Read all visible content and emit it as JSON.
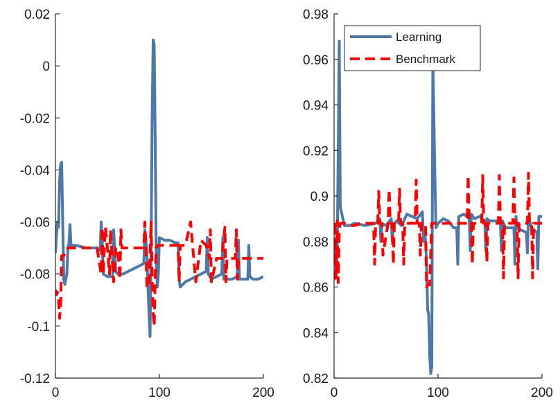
{
  "chart_data": [
    {
      "type": "line",
      "xlim": [
        0,
        200
      ],
      "ylim": [
        -0.12,
        0.02
      ],
      "xticks": [
        0,
        100,
        200
      ],
      "xtick_labels": [
        "0",
        "100",
        "200"
      ],
      "yticks": [
        -0.12,
        -0.1,
        -0.08,
        -0.06,
        -0.04,
        -0.02,
        0,
        0.02
      ],
      "ytick_labels": [
        "-0.12",
        "-0.1",
        "-0.08",
        "-0.06",
        "-0.04",
        "-0.02",
        "0",
        "0.02"
      ],
      "grid": false,
      "series": [
        {
          "color": "#4e79a7",
          "style": "solid",
          "x": [
            0,
            1,
            2,
            3,
            4,
            5,
            6,
            7,
            8,
            9,
            10,
            11,
            12,
            13,
            14,
            15,
            20,
            30,
            40,
            43,
            44,
            45,
            46,
            50,
            55,
            56,
            57,
            58,
            60,
            65,
            70,
            75,
            80,
            85,
            86,
            87,
            88,
            89,
            90,
            91,
            92,
            93,
            94,
            95,
            96,
            97,
            98,
            99,
            100,
            105,
            110,
            115,
            118,
            119,
            120,
            125,
            130,
            135,
            140,
            145,
            146,
            147,
            150,
            155,
            160,
            161,
            162,
            165,
            170,
            175,
            176,
            177,
            180,
            185,
            186,
            187,
            190,
            195,
            200
          ],
          "y": [
            -0.072,
            -0.065,
            -0.06,
            -0.062,
            -0.044,
            -0.038,
            -0.037,
            -0.06,
            -0.082,
            -0.084,
            -0.082,
            -0.08,
            -0.07,
            -0.068,
            -0.061,
            -0.069,
            -0.069,
            -0.07,
            -0.07,
            -0.071,
            -0.06,
            -0.068,
            -0.08,
            -0.081,
            -0.081,
            -0.063,
            -0.07,
            -0.079,
            -0.08,
            -0.08,
            -0.079,
            -0.078,
            -0.077,
            -0.076,
            -0.063,
            -0.067,
            -0.073,
            -0.085,
            -0.095,
            -0.104,
            -0.07,
            -0.02,
            0.01,
            0.008,
            -0.03,
            -0.075,
            -0.085,
            -0.08,
            -0.066,
            -0.067,
            -0.067,
            -0.068,
            -0.068,
            -0.082,
            -0.085,
            -0.083,
            -0.082,
            -0.081,
            -0.08,
            -0.079,
            -0.066,
            -0.08,
            -0.082,
            -0.081,
            -0.08,
            -0.066,
            -0.082,
            -0.082,
            -0.082,
            -0.081,
            -0.067,
            -0.082,
            -0.082,
            -0.082,
            -0.069,
            -0.081,
            -0.082,
            -0.082,
            -0.081
          ]
        },
        {
          "color": "#ff0000",
          "style": "dashed",
          "x": [
            0,
            1,
            2,
            3,
            4,
            5,
            6,
            7,
            8,
            9,
            10,
            11,
            12,
            13,
            15,
            20,
            25,
            30,
            35,
            40,
            44,
            45,
            46,
            47,
            48,
            50,
            52,
            53,
            54,
            56,
            58,
            60,
            62,
            63,
            64,
            65,
            70,
            75,
            80,
            85,
            86,
            87,
            88,
            90,
            92,
            93,
            94,
            95,
            96,
            97,
            98,
            99,
            100,
            105,
            110,
            115,
            118,
            119,
            120,
            125,
            130,
            135,
            140,
            145,
            148,
            149,
            150,
            155,
            160,
            163,
            164,
            165,
            170,
            173,
            174,
            175,
            176,
            178,
            180,
            185,
            190,
            195,
            200
          ],
          "y": [
            -0.086,
            -0.088,
            -0.087,
            -0.09,
            -0.097,
            -0.092,
            -0.073,
            -0.073,
            -0.073,
            -0.072,
            -0.072,
            -0.071,
            -0.07,
            -0.07,
            -0.07,
            -0.07,
            -0.07,
            -0.07,
            -0.07,
            -0.07,
            -0.08,
            -0.062,
            -0.08,
            -0.07,
            -0.062,
            -0.07,
            -0.08,
            -0.063,
            -0.07,
            -0.083,
            -0.07,
            -0.07,
            -0.082,
            -0.063,
            -0.07,
            -0.07,
            -0.07,
            -0.07,
            -0.07,
            -0.07,
            -0.06,
            -0.07,
            -0.085,
            -0.085,
            -0.06,
            -0.08,
            -0.095,
            -0.1,
            -0.08,
            -0.07,
            -0.069,
            -0.069,
            -0.069,
            -0.069,
            -0.069,
            -0.069,
            -0.069,
            -0.083,
            -0.069,
            -0.069,
            -0.06,
            -0.083,
            -0.067,
            -0.069,
            -0.074,
            -0.063,
            -0.083,
            -0.074,
            -0.074,
            -0.062,
            -0.083,
            -0.074,
            -0.074,
            -0.074,
            -0.063,
            -0.082,
            -0.074,
            -0.074,
            -0.074,
            -0.074,
            -0.074,
            -0.074,
            -0.074
          ]
        }
      ]
    },
    {
      "type": "line",
      "xlim": [
        0,
        200
      ],
      "ylim": [
        0.82,
        0.98
      ],
      "xticks": [
        0,
        100,
        200
      ],
      "xtick_labels": [
        "0",
        "100",
        "200"
      ],
      "yticks": [
        0.82,
        0.84,
        0.86,
        0.88,
        0.9,
        0.92,
        0.94,
        0.96,
        0.98
      ],
      "ytick_labels": [
        "0.82",
        "0.84",
        "0.86",
        "0.88",
        "0.9",
        "0.92",
        "0.94",
        "0.96",
        "0.98"
      ],
      "grid": false,
      "legend": {
        "location": "top-left",
        "entries": [
          "Learning",
          "Benchmark"
        ]
      },
      "series": [
        {
          "name": "Learning",
          "color": "#4e79a7",
          "style": "solid",
          "x": [
            0,
            1,
            2,
            3,
            4,
            5,
            6,
            7,
            8,
            9,
            10,
            15,
            20,
            30,
            40,
            44,
            45,
            46,
            50,
            55,
            56,
            57,
            60,
            65,
            70,
            80,
            85,
            86,
            87,
            88,
            89,
            90,
            91,
            92,
            93,
            94,
            95,
            96,
            97,
            98,
            100,
            105,
            110,
            115,
            118,
            119,
            120,
            125,
            130,
            131,
            132,
            135,
            140,
            145,
            146,
            147,
            150,
            160,
            161,
            162,
            165,
            170,
            173,
            174,
            175,
            176,
            180,
            185,
            186,
            187,
            190,
            195,
            196,
            197,
            200
          ],
          "y": [
            0.88,
            0.875,
            0.868,
            0.874,
            0.92,
            0.968,
            0.895,
            0.893,
            0.891,
            0.889,
            0.887,
            0.887,
            0.888,
            0.887,
            0.888,
            0.89,
            0.88,
            0.888,
            0.887,
            0.89,
            0.88,
            0.887,
            0.889,
            0.887,
            0.892,
            0.89,
            0.893,
            0.88,
            0.886,
            0.88,
            0.87,
            0.85,
            0.848,
            0.83,
            0.822,
            0.825,
            0.96,
            0.935,
            0.908,
            0.886,
            0.888,
            0.89,
            0.889,
            0.886,
            0.886,
            0.87,
            0.891,
            0.892,
            0.89,
            0.876,
            0.892,
            0.89,
            0.891,
            0.889,
            0.876,
            0.89,
            0.889,
            0.889,
            0.876,
            0.889,
            0.886,
            0.886,
            0.886,
            0.87,
            0.891,
            0.886,
            0.885,
            0.884,
            0.875,
            0.891,
            0.886,
            0.884,
            0.868,
            0.891,
            0.891
          ]
        },
        {
          "name": "Benchmark",
          "color": "#ff0000",
          "style": "dashed",
          "x": [
            0,
            1,
            2,
            3,
            4,
            5,
            6,
            10,
            15,
            20,
            25,
            30,
            38,
            39,
            40,
            42,
            43,
            44,
            46,
            47,
            52,
            53,
            54,
            56,
            57,
            58,
            62,
            63,
            64,
            66,
            67,
            68,
            78,
            79,
            80,
            82,
            83,
            84,
            88,
            89,
            90,
            92,
            93,
            94,
            95,
            96,
            97,
            98,
            100,
            105,
            110,
            115,
            118,
            119,
            120,
            128,
            129,
            130,
            132,
            133,
            134,
            142,
            143,
            144,
            146,
            147,
            148,
            158,
            159,
            160,
            162,
            163,
            164,
            172,
            173,
            174,
            176,
            177,
            178,
            186,
            187,
            188,
            190,
            191,
            192,
            200
          ],
          "y": [
            0.863,
            0.889,
            0.864,
            0.889,
            0.862,
            0.885,
            0.888,
            0.888,
            0.887,
            0.887,
            0.888,
            0.888,
            0.888,
            0.87,
            0.888,
            0.888,
            0.902,
            0.888,
            0.888,
            0.874,
            0.888,
            0.903,
            0.888,
            0.888,
            0.87,
            0.888,
            0.888,
            0.903,
            0.888,
            0.888,
            0.87,
            0.888,
            0.888,
            0.907,
            0.888,
            0.888,
            0.874,
            0.888,
            0.888,
            0.86,
            0.861,
            0.861,
            0.875,
            0.888,
            0.888,
            0.888,
            0.888,
            0.888,
            0.888,
            0.888,
            0.888,
            0.888,
            0.888,
            0.888,
            0.888,
            0.888,
            0.909,
            0.888,
            0.888,
            0.87,
            0.888,
            0.888,
            0.909,
            0.888,
            0.888,
            0.871,
            0.888,
            0.888,
            0.909,
            0.888,
            0.888,
            0.864,
            0.888,
            0.888,
            0.908,
            0.888,
            0.888,
            0.864,
            0.888,
            0.888,
            0.91,
            0.888,
            0.888,
            0.864,
            0.888,
            0.888
          ]
        }
      ]
    }
  ]
}
